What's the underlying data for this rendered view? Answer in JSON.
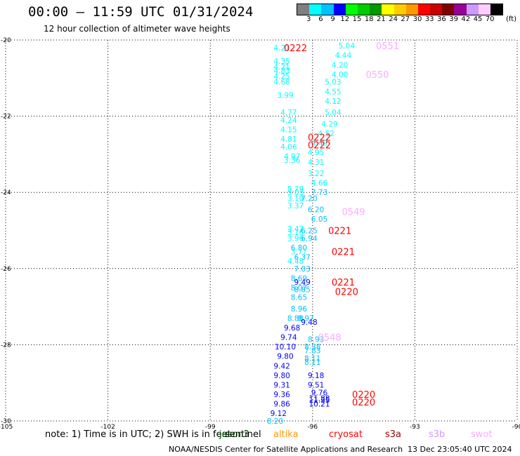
{
  "title": "00:00 – 11:59 UTC 01/31/2024",
  "subtitle": "12 hour collection of altimeter wave heights",
  "note": "note:  1)  Time is in UTC;  2)  SWH is in feet",
  "footer": "NOAA/NESDIS Center for Satellite Applications and Research",
  "footer_time": "13 Dec 23:05:40 UTC 2024",
  "legend": {
    "colors": [
      "#7f7f7f",
      "#00ffff",
      "#00c0ff",
      "#0000ff",
      "#00ff00",
      "#00cc00",
      "#009900",
      "#ffff00",
      "#ffcc00",
      "#ff9900",
      "#ff0000",
      "#cc0000",
      "#800000",
      "#990099",
      "#cc99ff",
      "#ffccff",
      "#000000"
    ],
    "labels": [
      "3",
      "6",
      "9",
      "12",
      "15",
      "18",
      "21",
      "24",
      "27",
      "30",
      "33",
      "36",
      "39",
      "42",
      "45",
      "70"
    ],
    "unit": "(ft)"
  },
  "satellites": [
    {
      "name": "jason3",
      "color": "#006600"
    },
    {
      "name": "sentinel",
      "color": "#000000"
    },
    {
      "name": "altika",
      "color": "#ff9900"
    },
    {
      "name": "cryosat",
      "color": "#ff0000"
    },
    {
      "name": "s3a",
      "color": "#990000"
    },
    {
      "name": "s3b",
      "color": "#cc99ff"
    },
    {
      "name": "swot",
      "color": "#ffaaff"
    }
  ],
  "chart_data": {
    "type": "scatter",
    "xlim": [
      -105,
      -90
    ],
    "ylim": [
      -30,
      -20
    ],
    "x_ticks": [
      "-105",
      "-102",
      "-99",
      "-96",
      "-93",
      "-90"
    ],
    "y_ticks": [
      "-20",
      "-22",
      "-24",
      "-26",
      "-28",
      "-30"
    ],
    "grid": true,
    "swh_points": [
      {
        "lon": -96.9,
        "lat": -20.2,
        "swh": "4.21"
      },
      {
        "lon": -95.0,
        "lat": -20.15,
        "swh": "5.04"
      },
      {
        "lon": -95.1,
        "lat": -20.4,
        "swh": "4.44"
      },
      {
        "lon": -95.2,
        "lat": -20.65,
        "swh": "4.20"
      },
      {
        "lon": -95.2,
        "lat": -20.9,
        "swh": "4.00"
      },
      {
        "lon": -96.9,
        "lat": -20.55,
        "swh": "4.35"
      },
      {
        "lon": -96.9,
        "lat": -20.7,
        "swh": "4.21"
      },
      {
        "lon": -96.9,
        "lat": -20.8,
        "swh": "4.83"
      },
      {
        "lon": -96.9,
        "lat": -20.95,
        "swh": "4.25"
      },
      {
        "lon": -96.9,
        "lat": -21.1,
        "swh": "4.68"
      },
      {
        "lon": -95.4,
        "lat": -21.1,
        "swh": "5.03"
      },
      {
        "lon": -95.4,
        "lat": -21.35,
        "swh": "4.55"
      },
      {
        "lon": -96.8,
        "lat": -21.45,
        "swh": "3.99"
      },
      {
        "lon": -95.4,
        "lat": -21.6,
        "swh": "4.12"
      },
      {
        "lon": -96.7,
        "lat": -21.9,
        "swh": "4.77"
      },
      {
        "lon": -95.4,
        "lat": -21.9,
        "swh": "5.04"
      },
      {
        "lon": -96.7,
        "lat": -22.1,
        "swh": "4.24"
      },
      {
        "lon": -95.5,
        "lat": -22.2,
        "swh": "4.29"
      },
      {
        "lon": -96.7,
        "lat": -22.35,
        "swh": "4.15"
      },
      {
        "lon": -95.6,
        "lat": -22.45,
        "swh": "4.52"
      },
      {
        "lon": -96.7,
        "lat": -22.6,
        "swh": "4.81"
      },
      {
        "lon": -96.7,
        "lat": -22.8,
        "swh": "4.06"
      },
      {
        "lon": -95.8,
        "lat": -22.7,
        "swh": "4.49"
      },
      {
        "lon": -95.9,
        "lat": -22.95,
        "swh": "4.95"
      },
      {
        "lon": -96.6,
        "lat": -23.05,
        "swh": "4.97"
      },
      {
        "lon": -96.6,
        "lat": -23.15,
        "swh": "3.36"
      },
      {
        "lon": -95.9,
        "lat": -23.2,
        "swh": "4.31"
      },
      {
        "lon": -95.9,
        "lat": -23.5,
        "swh": "3.22"
      },
      {
        "lon": -95.8,
        "lat": -23.75,
        "swh": "4.66"
      },
      {
        "lon": -96.5,
        "lat": -23.9,
        "swh": "5.79"
      },
      {
        "lon": -96.5,
        "lat": -24.0,
        "swh": "5.03"
      },
      {
        "lon": -95.8,
        "lat": -24.0,
        "swh": "7.73"
      },
      {
        "lon": -96.5,
        "lat": -24.15,
        "swh": "3.10"
      },
      {
        "lon": -96.1,
        "lat": -24.15,
        "swh": "7.20"
      },
      {
        "lon": -96.5,
        "lat": -24.35,
        "swh": "3.37"
      },
      {
        "lon": -95.9,
        "lat": -24.45,
        "swh": "6.20"
      },
      {
        "lon": -95.8,
        "lat": -24.7,
        "swh": "6.05"
      },
      {
        "lon": -96.5,
        "lat": -24.95,
        "swh": "3.47"
      },
      {
        "lon": -96.5,
        "lat": -25.05,
        "swh": "3.16"
      },
      {
        "lon": -96.1,
        "lat": -25.0,
        "swh": "6.25"
      },
      {
        "lon": -96.5,
        "lat": -25.2,
        "swh": "3.96"
      },
      {
        "lon": -96.1,
        "lat": -25.2,
        "swh": "6.94"
      },
      {
        "lon": -96.4,
        "lat": -25.45,
        "swh": "6.80"
      },
      {
        "lon": -96.4,
        "lat": -25.55,
        "swh": "3.77"
      },
      {
        "lon": -96.3,
        "lat": -25.7,
        "swh": "6.37"
      },
      {
        "lon": -96.5,
        "lat": -25.8,
        "swh": "4.48"
      },
      {
        "lon": -96.3,
        "lat": -26.0,
        "swh": "7.03"
      },
      {
        "lon": -96.4,
        "lat": -26.25,
        "swh": "8.69"
      },
      {
        "lon": -96.3,
        "lat": -26.35,
        "swh": "9.49"
      },
      {
        "lon": -96.4,
        "lat": -26.5,
        "swh": "8.07"
      },
      {
        "lon": -96.3,
        "lat": -26.55,
        "swh": "8.85"
      },
      {
        "lon": -96.4,
        "lat": -26.75,
        "swh": "8.65"
      },
      {
        "lon": -96.4,
        "lat": -27.05,
        "swh": "8.96"
      },
      {
        "lon": -96.5,
        "lat": -27.3,
        "swh": "8.88"
      },
      {
        "lon": -96.2,
        "lat": -27.3,
        "swh": "8.97"
      },
      {
        "lon": -96.1,
        "lat": -27.4,
        "swh": "9.48"
      },
      {
        "lon": -96.6,
        "lat": -27.55,
        "swh": "9.68"
      },
      {
        "lon": -96.7,
        "lat": -27.8,
        "swh": "9.74"
      },
      {
        "lon": -95.9,
        "lat": -27.85,
        "swh": "8.93"
      },
      {
        "lon": -96.8,
        "lat": -28.05,
        "swh": "10.10"
      },
      {
        "lon": -96.0,
        "lat": -28.05,
        "swh": "8.38"
      },
      {
        "lon": -96.0,
        "lat": -28.15,
        "swh": "7.83"
      },
      {
        "lon": -96.8,
        "lat": -28.3,
        "swh": "9.80"
      },
      {
        "lon": -96.0,
        "lat": -28.35,
        "swh": "8.11"
      },
      {
        "lon": -96.9,
        "lat": -28.55,
        "swh": "9.42"
      },
      {
        "lon": -96.0,
        "lat": -28.45,
        "swh": "8.11"
      },
      {
        "lon": -96.9,
        "lat": -28.8,
        "swh": "9.80"
      },
      {
        "lon": -95.9,
        "lat": -28.8,
        "swh": "9.18"
      },
      {
        "lon": -96.9,
        "lat": -29.05,
        "swh": "9.31"
      },
      {
        "lon": -95.9,
        "lat": -29.05,
        "swh": "9.51"
      },
      {
        "lon": -96.9,
        "lat": -29.3,
        "swh": "9.36"
      },
      {
        "lon": -95.8,
        "lat": -29.25,
        "swh": "9.76"
      },
      {
        "lon": -95.8,
        "lat": -29.4,
        "swh": "11.88"
      },
      {
        "lon": -95.8,
        "lat": -29.45,
        "swh": "11.35"
      },
      {
        "lon": -96.9,
        "lat": -29.55,
        "swh": "9.86"
      },
      {
        "lon": -95.8,
        "lat": -29.55,
        "swh": "10.21"
      },
      {
        "lon": -97.0,
        "lat": -29.8,
        "swh": "9.12"
      },
      {
        "lon": -97.1,
        "lat": -30.0,
        "swh": "8.20"
      }
    ],
    "time_labels": [
      {
        "lon": -96.5,
        "lat": -20.2,
        "text": "0222",
        "satellite": "cryosat"
      },
      {
        "lon": -93.8,
        "lat": -20.15,
        "text": "0551",
        "satellite": "swot"
      },
      {
        "lon": -94.1,
        "lat": -20.9,
        "text": "0550",
        "satellite": "swot"
      },
      {
        "lon": -95.8,
        "lat": -22.55,
        "text": "0222",
        "satellite": "cryosat"
      },
      {
        "lon": -95.8,
        "lat": -22.75,
        "text": "0222",
        "satellite": "cryosat"
      },
      {
        "lon": -94.8,
        "lat": -24.5,
        "text": "0549",
        "satellite": "swot"
      },
      {
        "lon": -95.2,
        "lat": -25.0,
        "text": "0221",
        "satellite": "cryosat"
      },
      {
        "lon": -95.1,
        "lat": -25.55,
        "text": "0221",
        "satellite": "cryosat"
      },
      {
        "lon": -95.1,
        "lat": -26.35,
        "text": "0221",
        "satellite": "cryosat"
      },
      {
        "lon": -95.0,
        "lat": -26.6,
        "text": "0220",
        "satellite": "cryosat"
      },
      {
        "lon": -95.5,
        "lat": -27.8,
        "text": "0548",
        "satellite": "swot"
      },
      {
        "lon": -94.5,
        "lat": -29.3,
        "text": "0220",
        "satellite": "cryosat"
      },
      {
        "lon": -94.5,
        "lat": -29.5,
        "text": "0220",
        "satellite": "cryosat"
      }
    ]
  }
}
